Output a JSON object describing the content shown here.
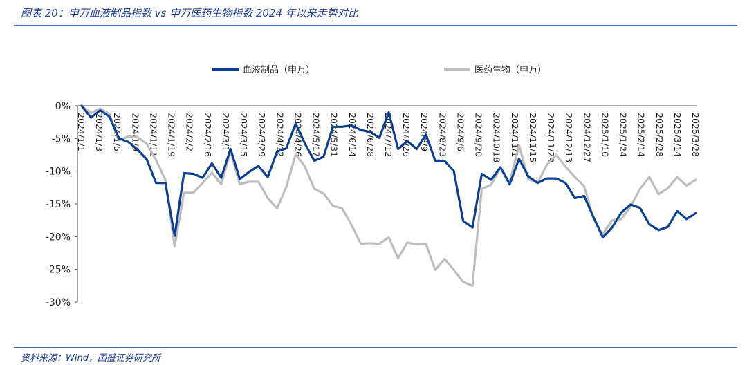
{
  "figure": {
    "title": "图表 20：申万血液制品指数 vs 申万医药生物指数 2024 年以来走势对比",
    "source": "资料来源：Wind，国盛证券研究所"
  },
  "chart_data": {
    "type": "line",
    "y_tick_labels": [
      "0%",
      "-5%",
      "-10%",
      "-15%",
      "-20%",
      "-25%",
      "-30%"
    ],
    "ylim": [
      -30,
      0
    ],
    "x_tick_labels": [
      "2024/1/1",
      "2024/1/3",
      "2024/1/5",
      "2024/1/9",
      "2024/1/11",
      "2024/1/19",
      "2024/2/2",
      "2024/2/16",
      "2024/3/1",
      "2024/3/15",
      "2024/3/29",
      "2024/4/12",
      "2024/4/26",
      "2024/5/17",
      "2024/5/31",
      "2024/6/14",
      "2024/6/28",
      "2024/7/12",
      "2024/7/26",
      "2024/8/9",
      "2024/8/23",
      "2024/9/6",
      "2024/9/20",
      "2024/10/18",
      "2024/11/1",
      "2024/11/15",
      "2024/11/29",
      "2024/12/13",
      "2024/12/27",
      "2025/1/10",
      "2025/1/24",
      "2025/2/14",
      "2025/2/28",
      "2025/3/14",
      "2025/3/28"
    ],
    "legend_position": "top",
    "series": [
      {
        "name": "血液制品（申万）",
        "color": "#0b3f91",
        "values": [
          0,
          -1.8,
          -0.7,
          -1.7,
          -5.0,
          -5.5,
          -6.7,
          -8.2,
          -11.8,
          -11.8,
          -19.9,
          -10.3,
          -10.4,
          -11.0,
          -8.8,
          -11.0,
          -6.6,
          -11.2,
          -10.1,
          -9.2,
          -10.9,
          -7.0,
          -6.5,
          -2.7,
          -5.8,
          -8.4,
          -7.8,
          -3.2,
          -3.2,
          -3.0,
          -3.7,
          -4.0,
          -4.9,
          -1.0,
          -6.6,
          -5.4,
          -6.6,
          -4.4,
          -8.4,
          -8.4,
          -10.0,
          -17.6,
          -18.6,
          -10.4,
          -11.3,
          -9.4,
          -12.0,
          -8.1,
          -10.8,
          -11.8,
          -11.1,
          -11.1,
          -11.8,
          -14.1,
          -13.8,
          -17.0,
          -20.1,
          -18.6,
          -16.3,
          -15.1,
          -15.6,
          -18.1,
          -19.0,
          -18.5,
          -16.1,
          -17.3,
          -16.4
        ]
      },
      {
        "name": "医药生物（申万）",
        "color": "#bdbdbd",
        "values": [
          0,
          -1.1,
          -0.4,
          -1.3,
          -5.3,
          -4.7,
          -4.8,
          -5.8,
          -8.3,
          -11.3,
          -21.5,
          -13.3,
          -13.3,
          -11.8,
          -10.2,
          -12.0,
          -7.0,
          -12.0,
          -11.6,
          -11.6,
          -14.1,
          -15.7,
          -12.4,
          -7.4,
          -9.3,
          -12.7,
          -13.4,
          -15.3,
          -15.7,
          -18.2,
          -21.1,
          -21.0,
          -21.1,
          -20.1,
          -23.3,
          -20.9,
          -21.2,
          -21.1,
          -25.1,
          -23.4,
          -25.1,
          -26.9,
          -27.5,
          -12.7,
          -12.1,
          -9.4,
          -11.7,
          -6.0,
          -11.2,
          -11.8,
          -9.0,
          -7.5,
          -9.3,
          -10.9,
          -12.3,
          -17.3,
          -19.6,
          -17.5,
          -17.3,
          -15.4,
          -12.7,
          -10.9,
          -13.5,
          -12.6,
          -10.9,
          -12.2,
          -11.3
        ]
      }
    ]
  }
}
